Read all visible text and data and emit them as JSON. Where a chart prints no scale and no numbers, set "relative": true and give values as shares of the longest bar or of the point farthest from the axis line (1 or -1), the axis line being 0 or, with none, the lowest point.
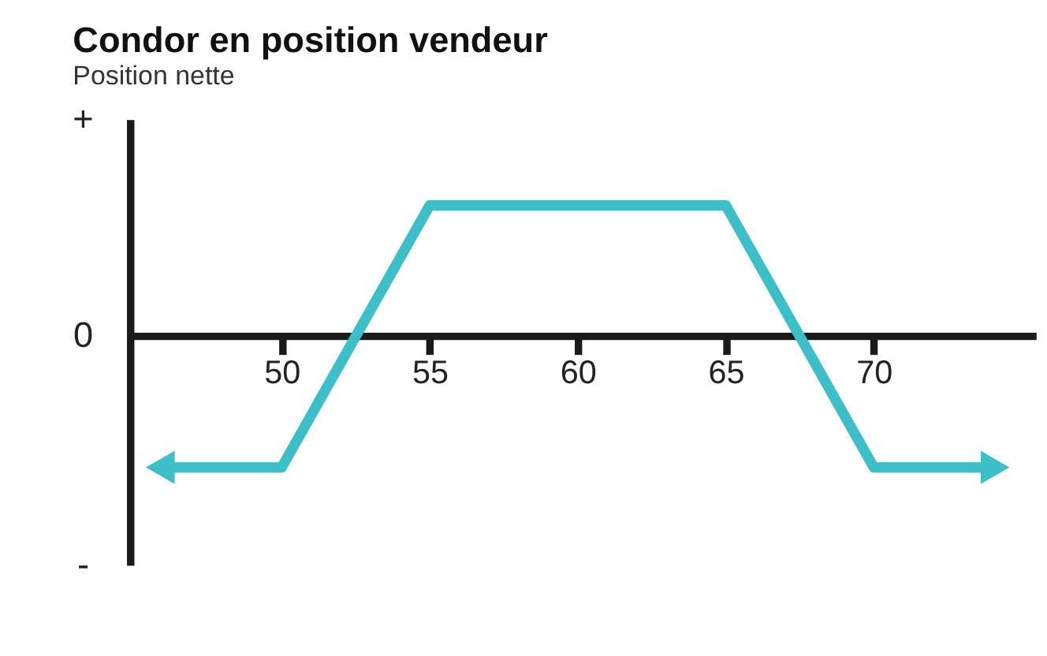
{
  "chart_data": {
    "type": "line",
    "title": "Condor en position vendeur",
    "subtitle": "Position nette",
    "relative": true,
    "x": [
      45.9,
      50,
      55,
      65,
      70,
      74.1
    ],
    "series": [
      {
        "color": "#3dbfc9",
        "values": [
          -1,
          -1,
          1,
          1,
          -1,
          -1
        ]
      }
    ],
    "xlim": [
      44.9,
      75.5
    ],
    "xticks": [
      50,
      55,
      60,
      65,
      70
    ],
    "annotations": [
      "+",
      "0",
      "-"
    ],
    "marker": "none",
    "line_style": "solid"
  }
}
